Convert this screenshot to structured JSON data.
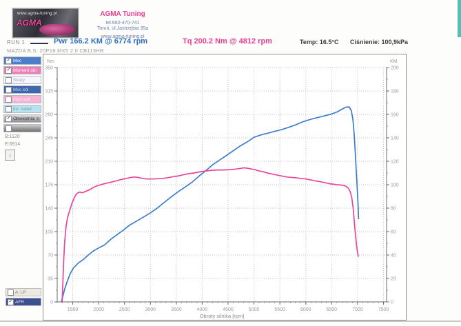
{
  "header": {
    "logo_url_text": "www.agma-tuning.pl",
    "logo_brand": "AGMA",
    "company": "AGMA Tuning",
    "phone": "tel.660-470-741",
    "address": "Toruń, ul.Jastrzębia 35a",
    "website": "www.agma-tuning.pl"
  },
  "info_bar": {
    "run_label": "RUN 1",
    "run_line_color": "#2c3350",
    "power_reading": "Pwr 166.2 KM @ 6774 rpm",
    "torque_reading": "Tq 200.2 Nm @ 4812 rpm",
    "temperature": "Temp: 16.5°C",
    "pressure": "Ciśnienie: 100,9kPa",
    "vehicle": "MAZDA B.S. 20P18 MX5 2.0 CB113HR"
  },
  "sidebar": {
    "items": [
      {
        "label": "Moc",
        "checked": true,
        "bg": "#4a7ec9",
        "bg2": "",
        "fg": "#ffffff"
      },
      {
        "label": "Moment obr",
        "checked": true,
        "bg": "#ef7fb9",
        "bg2": "",
        "fg": "#ffffff"
      },
      {
        "label": "Straty",
        "checked": false,
        "bg": "#f5f5fd",
        "bg2": "",
        "fg": "#a9a9c0"
      },
      {
        "label": "Moc kół",
        "checked": false,
        "bg": "#3f67ae",
        "bg2": "",
        "fg": "#cdd8ec"
      },
      {
        "label": "Mom kół",
        "checked": false,
        "bg": "#f7b5d6",
        "bg2": "",
        "fg": "#fdeaf4"
      },
      {
        "label": "tor. naład",
        "checked": false,
        "bg": "#b8e2ef",
        "bg2": "",
        "fg": "#7f9fae"
      },
      {
        "label": "Obwiednia: nie",
        "checked": true,
        "bg": "#dcdcdc",
        "bg2": "#8f8f8f",
        "fg": "#3f3f3f"
      },
      {
        "label": "",
        "checked": false,
        "bg": "#cfcfcf",
        "bg2": "#6f6f6f",
        "fg": "#f0f0f0"
      }
    ],
    "begin_label": "B:1120",
    "end_label": "E:6914",
    "down_button": "↓",
    "bottom_items": [
      {
        "label": "A: LP",
        "checked": false,
        "bg": "#eceadf",
        "bg2": "",
        "fg": "#8a8878"
      },
      {
        "label": "AFR",
        "checked": true,
        "bg": "#3d4f8f",
        "bg2": "",
        "fg": "#e8e8f4"
      }
    ]
  },
  "chart_data": {
    "type": "line",
    "title": "",
    "xlabel": "Obroty silnika [rpm]",
    "xlim": [
      1200,
      7560
    ],
    "x_tick_start": 1500,
    "x_tick_step": 500,
    "x_tick_end": 7500,
    "x_minor_step": 100,
    "grid": true,
    "grid_color": "#bcc6bd",
    "axis_color": "#6a6a6a",
    "tick_label_color": "#9a9a9a",
    "left_axis": {
      "unit": "Nm",
      "min": 0,
      "max": 350,
      "step": 35,
      "minor_step": 17.5
    },
    "right_axis": {
      "unit": "KM",
      "min": 0,
      "max": 200,
      "step": 20,
      "minor_step": 10
    },
    "legend_position": "top-outside",
    "series": [
      {
        "name": "Moc (KM)",
        "axis": "right",
        "color": "#3d7cc9",
        "peak": "166.2 KM @ 6774 rpm",
        "points": [
          [
            1280,
            0
          ],
          [
            1310,
            5
          ],
          [
            1345,
            11
          ],
          [
            1390,
            17
          ],
          [
            1450,
            24
          ],
          [
            1515,
            29
          ],
          [
            1580,
            32
          ],
          [
            1615,
            33.5
          ],
          [
            1700,
            36
          ],
          [
            1800,
            40
          ],
          [
            1900,
            43.5
          ],
          [
            2000,
            46
          ],
          [
            2110,
            48.5
          ],
          [
            2250,
            54
          ],
          [
            2360,
            57.5
          ],
          [
            2470,
            61
          ],
          [
            2600,
            65.5
          ],
          [
            2735,
            69
          ],
          [
            2870,
            72.5
          ],
          [
            3000,
            76
          ],
          [
            3130,
            80
          ],
          [
            3270,
            85
          ],
          [
            3400,
            89.5
          ],
          [
            3535,
            94
          ],
          [
            3670,
            98
          ],
          [
            3800,
            102
          ],
          [
            3930,
            107
          ],
          [
            4070,
            112
          ],
          [
            4200,
            117
          ],
          [
            4335,
            121
          ],
          [
            4470,
            125
          ],
          [
            4600,
            129
          ],
          [
            4730,
            133
          ],
          [
            4870,
            136.5
          ],
          [
            5000,
            140.5
          ],
          [
            5130,
            142.5
          ],
          [
            5270,
            144
          ],
          [
            5400,
            145.5
          ],
          [
            5535,
            147
          ],
          [
            5670,
            149
          ],
          [
            5800,
            151
          ],
          [
            5930,
            153.5
          ],
          [
            6070,
            155.5
          ],
          [
            6200,
            157
          ],
          [
            6335,
            158.5
          ],
          [
            6470,
            160
          ],
          [
            6600,
            162
          ],
          [
            6700,
            164.5
          ],
          [
            6774,
            166.2
          ],
          [
            6840,
            166.4
          ],
          [
            6880,
            163
          ],
          [
            6910,
            156
          ],
          [
            6935,
            143
          ],
          [
            6955,
            128
          ],
          [
            6975,
            112
          ],
          [
            6995,
            96
          ],
          [
            7010,
            82
          ],
          [
            7020,
            71
          ]
        ]
      },
      {
        "name": "Moment obrotowy (Nm)",
        "axis": "left",
        "color": "#e8459a",
        "peak": "200.2 Nm @ 4812 rpm",
        "points": [
          [
            1295,
            0
          ],
          [
            1310,
            30
          ],
          [
            1325,
            62
          ],
          [
            1345,
            90
          ],
          [
            1370,
            112
          ],
          [
            1400,
            126
          ],
          [
            1440,
            136
          ],
          [
            1480,
            146
          ],
          [
            1520,
            154
          ],
          [
            1560,
            160
          ],
          [
            1600,
            163
          ],
          [
            1640,
            164
          ],
          [
            1680,
            163
          ],
          [
            1720,
            164
          ],
          [
            1780,
            166
          ],
          [
            1840,
            168
          ],
          [
            1900,
            171
          ],
          [
            1960,
            173
          ],
          [
            2040,
            175
          ],
          [
            2140,
            177
          ],
          [
            2280,
            179.5
          ],
          [
            2400,
            182
          ],
          [
            2507,
            184
          ],
          [
            2600,
            185.5
          ],
          [
            2680,
            186.5
          ],
          [
            2760,
            186
          ],
          [
            2840,
            184.5
          ],
          [
            2940,
            183.5
          ],
          [
            3040,
            183.5
          ],
          [
            3140,
            184
          ],
          [
            3240,
            184.5
          ],
          [
            3340,
            185.5
          ],
          [
            3440,
            187
          ],
          [
            3533,
            188
          ],
          [
            3640,
            190
          ],
          [
            3740,
            191.5
          ],
          [
            3840,
            192.5
          ],
          [
            3940,
            194
          ],
          [
            4067,
            195.5
          ],
          [
            4180,
            196.5
          ],
          [
            4280,
            197
          ],
          [
            4400,
            197
          ],
          [
            4547,
            197.5
          ],
          [
            4660,
            198.5
          ],
          [
            4750,
            199.5
          ],
          [
            4812,
            200.2
          ],
          [
            4880,
            199.5
          ],
          [
            4950,
            198.5
          ],
          [
            5013,
            197.5
          ],
          [
            5100,
            195.5
          ],
          [
            5173,
            194.5
          ],
          [
            5280,
            192
          ],
          [
            5380,
            190.5
          ],
          [
            5440,
            189.5
          ],
          [
            5540,
            188
          ],
          [
            5640,
            186.5
          ],
          [
            5707,
            186
          ],
          [
            5800,
            185.5
          ],
          [
            5900,
            184.5
          ],
          [
            5973,
            184
          ],
          [
            6070,
            182.5
          ],
          [
            6170,
            181
          ],
          [
            6240,
            180
          ],
          [
            6340,
            178.5
          ],
          [
            6430,
            177
          ],
          [
            6507,
            176
          ],
          [
            6600,
            175
          ],
          [
            6680,
            174.5
          ],
          [
            6733,
            174
          ],
          [
            6790,
            172
          ],
          [
            6830,
            169
          ],
          [
            6860,
            164
          ],
          [
            6890,
            155
          ],
          [
            6915,
            140
          ],
          [
            6935,
            122
          ],
          [
            6955,
            104
          ],
          [
            6975,
            88
          ],
          [
            6995,
            76
          ],
          [
            7015,
            68
          ]
        ]
      }
    ]
  }
}
